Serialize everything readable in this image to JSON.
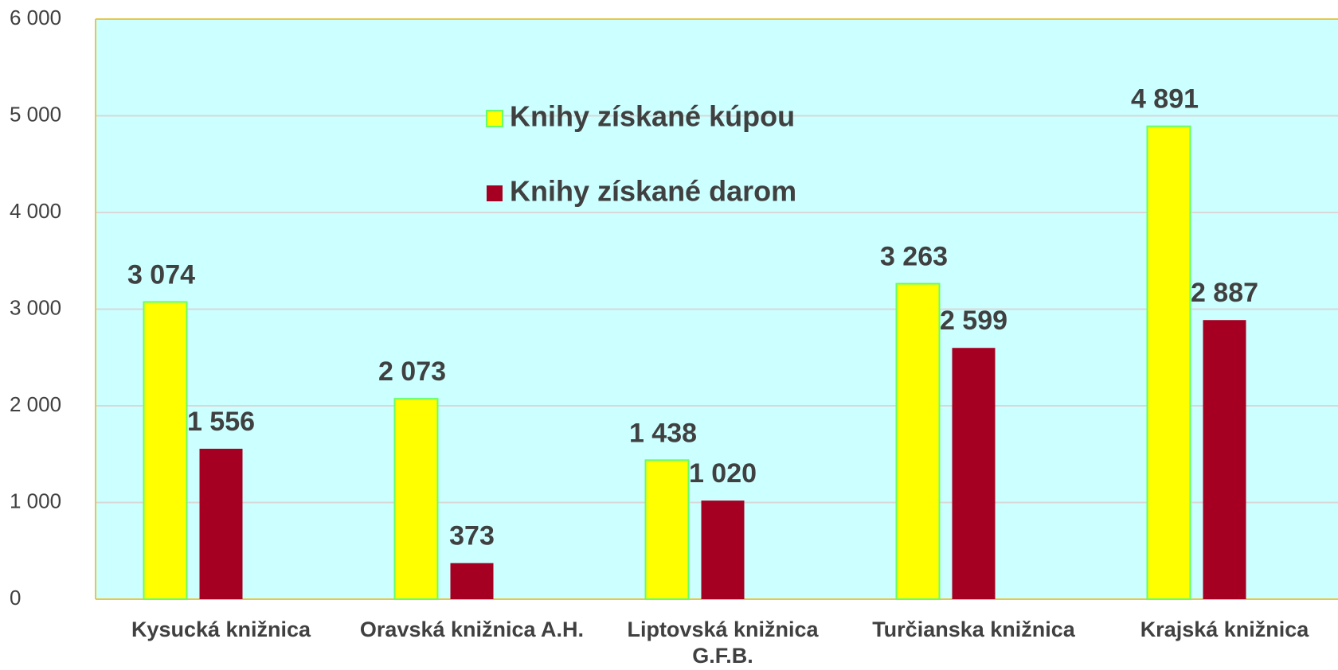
{
  "chart_data": {
    "type": "bar",
    "categories": [
      "Kysucká knižnica",
      "Oravská knižnica A.H.",
      "Liptovská knižnica G.F.B.",
      "Turčianska knižnica",
      "Krajská knižnica"
    ],
    "series": [
      {
        "name": "Knihy získané kúpou",
        "color": "#ffff00",
        "values": [
          3074,
          2073,
          1438,
          3263,
          4891
        ],
        "value_labels": [
          "3 074",
          "2 073",
          "1 438",
          "3 263",
          "4 891"
        ]
      },
      {
        "name": "Knihy získané darom",
        "color": "#a50021",
        "values": [
          1556,
          373,
          1020,
          2599,
          2887
        ],
        "value_labels": [
          "1 556",
          "373",
          "1 020",
          "2 599",
          "2 887"
        ]
      }
    ],
    "ylim": [
      0,
      6000
    ],
    "yticks": [
      {
        "value": 0,
        "label": "0"
      },
      {
        "value": 1000,
        "label": "1 000"
      },
      {
        "value": 2000,
        "label": "2 000"
      },
      {
        "value": 3000,
        "label": "3 000"
      },
      {
        "value": 4000,
        "label": "4 000"
      },
      {
        "value": 5000,
        "label": "5 000"
      },
      {
        "value": 6000,
        "label": "6 000"
      }
    ],
    "grid": true,
    "legend": "top"
  }
}
